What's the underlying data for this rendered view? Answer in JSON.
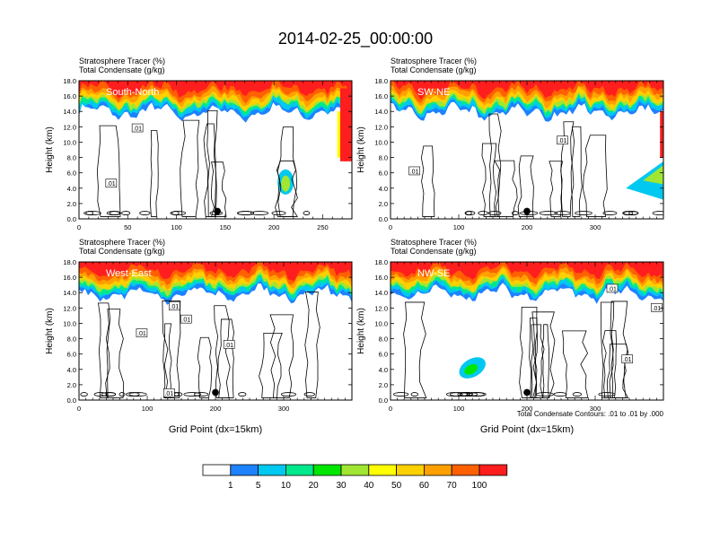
{
  "main_title": "2014-02-25_00:00:00",
  "colors": {
    "levels": [
      "#ffffff",
      "#1e82ff",
      "#00c8f0",
      "#00e88c",
      "#00e600",
      "#a0e632",
      "#ffff00",
      "#ffd000",
      "#ffa000",
      "#ff6000",
      "#ff1e1e"
    ]
  },
  "colorbar": {
    "labels": [
      "1",
      "5",
      "10",
      "20",
      "30",
      "40",
      "50",
      "60",
      "70",
      "100"
    ]
  },
  "contour_note": "Total Condensate Contours: .01 to .01 by .000",
  "chart_data": [
    {
      "type": "heatmap",
      "panel": "South-North",
      "title_line1": "Stratosphere Tracer   (%)",
      "title_line2": "Total Condensate   (g/kg)",
      "ylabel": "Height (km)",
      "xlabel": "",
      "xlim": [
        0,
        280
      ],
      "ylim": [
        0,
        18
      ],
      "xticks": [
        0,
        50,
        100,
        150,
        200,
        250
      ],
      "yticks": [
        "0.0",
        "2.0",
        "4.0",
        "6.0",
        "8.0",
        "10.0",
        "12.0",
        "14.0",
        "16.0",
        "18.0"
      ],
      "marker_x": 142,
      "contour_labels": [
        {
          "x": 60,
          "y": 11.8,
          "text": ".01"
        },
        {
          "x": 33,
          "y": 4.6,
          "text": ".01"
        }
      ]
    },
    {
      "type": "heatmap",
      "panel": "SW-NE",
      "title_line1": "Stratosphere Tracer   (%)",
      "title_line2": "Total Condensate   (g/kg)",
      "ylabel": "Height (km)",
      "xlabel": "",
      "xlim": [
        0,
        400
      ],
      "ylim": [
        0,
        18
      ],
      "xticks": [
        0,
        100,
        200,
        300
      ],
      "yticks": [
        "0.0",
        "2.0",
        "4.0",
        "6.0",
        "8.0",
        "10.0",
        "12.0",
        "14.0",
        "16.0",
        "18.0"
      ],
      "marker_x": 200,
      "contour_labels": [
        {
          "x": 252,
          "y": 10.2,
          "text": ".01"
        },
        {
          "x": 35,
          "y": 6.2,
          "text": ".01"
        }
      ]
    },
    {
      "type": "heatmap",
      "panel": "West-East",
      "title_line1": "Stratosphere Tracer   (%)",
      "title_line2": "Total Condensate   (g/kg)",
      "ylabel": "Height (km)",
      "xlabel": "Grid Point (dx=15km)",
      "xlim": [
        0,
        400
      ],
      "ylim": [
        0,
        18
      ],
      "xticks": [
        0,
        100,
        200,
        300
      ],
      "yticks": [
        "0.0",
        "2.0",
        "4.0",
        "6.0",
        "8.0",
        "10.0",
        "12.0",
        "14.0",
        "16.0",
        "18.0"
      ],
      "marker_x": 200,
      "contour_labels": [
        {
          "x": 140,
          "y": 12.2,
          "text": ".01"
        },
        {
          "x": 157,
          "y": 10.5,
          "text": ".01"
        },
        {
          "x": 92,
          "y": 8.7,
          "text": ".01"
        },
        {
          "x": 220,
          "y": 7.2,
          "text": ".01"
        },
        {
          "x": 132,
          "y": 0.9,
          "text": ".01"
        }
      ]
    },
    {
      "type": "heatmap",
      "panel": "NW-SE",
      "title_line1": "Stratosphere Tracer   (%)",
      "title_line2": "Total Condensate   (g/kg)",
      "ylabel": "Height (km)",
      "xlabel": "Grid Point (dx=15km)",
      "xlim": [
        0,
        400
      ],
      "ylim": [
        0,
        18
      ],
      "xticks": [
        0,
        100,
        200,
        300
      ],
      "yticks": [
        "0.0",
        "2.0",
        "4.0",
        "6.0",
        "8.0",
        "10.0",
        "12.0",
        "14.0",
        "16.0",
        "18.0"
      ],
      "marker_x": 200,
      "contour_labels": [
        {
          "x": 325,
          "y": 14.5,
          "text": ".01"
        },
        {
          "x": 390,
          "y": 12.0,
          "text": ".01"
        },
        {
          "x": 347,
          "y": 5.3,
          "text": ".01"
        }
      ]
    }
  ]
}
